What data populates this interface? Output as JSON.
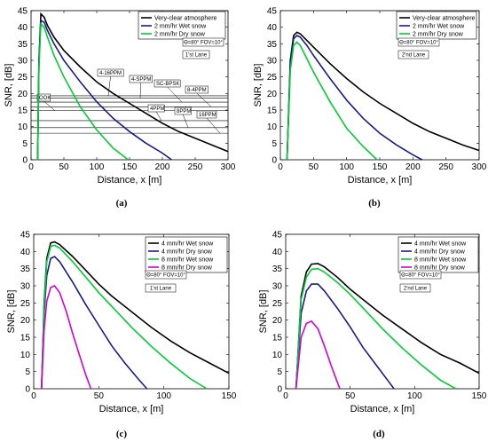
{
  "chart_data": [
    {
      "type": "line",
      "caption": "(a)",
      "xlabel": "Distance, x [m]",
      "ylabel": "SNR, [dB]",
      "xlim": [
        0,
        300
      ],
      "ylim": [
        0,
        45
      ],
      "xticks": [
        0,
        50,
        100,
        150,
        200,
        250,
        300
      ],
      "yticks": [
        0,
        5,
        10,
        15,
        20,
        25,
        30,
        35,
        40,
        45
      ],
      "legend": {
        "placement": "top-right"
      },
      "annotations": [
        "Θ=80° FOV=10°",
        "1'st Lane"
      ],
      "series": [
        {
          "name": "Very-clear atmosphere",
          "color": "#000000",
          "x": [
            10,
            12,
            15,
            20,
            25,
            35,
            50,
            75,
            100,
            125,
            150,
            175,
            200,
            225,
            250,
            275,
            300
          ],
          "y": [
            0,
            30,
            44,
            43,
            40.5,
            37,
            33,
            28,
            23.5,
            20,
            17,
            14,
            11,
            8.5,
            6.5,
            4.5,
            2.5
          ]
        },
        {
          "name": "2 mm/hr Wet snow",
          "color": "#1a1a8c",
          "x": [
            10,
            12,
            15,
            20,
            25,
            35,
            50,
            75,
            100,
            125,
            150,
            175,
            200,
            214
          ],
          "y": [
            0,
            30,
            42,
            41.5,
            39,
            35,
            30,
            23.5,
            17.5,
            12.5,
            8.5,
            5,
            2,
            0
          ]
        },
        {
          "name": "2 mm/hr Dry snow",
          "color": "#00cc33",
          "x": [
            10,
            12,
            15,
            20,
            25,
            35,
            50,
            75,
            100,
            125,
            148
          ],
          "y": [
            0,
            28,
            41,
            40,
            37,
            31.5,
            25,
            16,
            9,
            3.5,
            0
          ]
        }
      ],
      "thresholds": [
        {
          "label": "4-16PPM",
          "y": 19.3
        },
        {
          "label": "4-SPPM",
          "y": 18.6
        },
        {
          "label": "SC-BPSK",
          "y": 17.4
        },
        {
          "label": "8-4PPM",
          "y": 16.0
        },
        {
          "label": "OOK",
          "y": 14.8
        },
        {
          "label": "4PPM",
          "y": 11.8
        },
        {
          "label": "8PPM",
          "y": 9.7
        },
        {
          "label": "16PPM",
          "y": 8.0
        }
      ]
    },
    {
      "type": "line",
      "caption": "(b)",
      "xlabel": "Distance, x [m]",
      "ylabel": "SNR, [dB]",
      "xlim": [
        0,
        300
      ],
      "ylim": [
        0,
        45
      ],
      "xticks": [
        0,
        50,
        100,
        150,
        200,
        250,
        300
      ],
      "yticks": [
        0,
        5,
        10,
        15,
        20,
        25,
        30,
        35,
        40,
        45
      ],
      "legend": {
        "placement": "top-right"
      },
      "annotations": [
        "Θ=80° FOV=10°",
        "2'nd Lane"
      ],
      "series": [
        {
          "name": "Very-clear atmosphere",
          "color": "#000000",
          "x": [
            10,
            15,
            20,
            25,
            30,
            40,
            50,
            75,
            100,
            125,
            150,
            175,
            200,
            225,
            250,
            275,
            300
          ],
          "y": [
            0,
            30,
            37.5,
            38.5,
            38,
            36,
            34,
            29,
            24.5,
            20.5,
            17,
            14,
            11,
            8.5,
            6.5,
            4.5,
            2.8
          ]
        },
        {
          "name": "2 mm/hr Wet snow",
          "color": "#1a1a8c",
          "x": [
            10,
            15,
            20,
            25,
            30,
            40,
            50,
            75,
            100,
            125,
            150,
            175,
            200,
            214
          ],
          "y": [
            0,
            29,
            36.5,
            37.5,
            37,
            34.5,
            31.5,
            24.5,
            18,
            12.5,
            8,
            4.5,
            1.5,
            0
          ]
        },
        {
          "name": "2 mm/hr Dry snow",
          "color": "#00cc33",
          "x": [
            10,
            15,
            20,
            25,
            30,
            40,
            50,
            75,
            100,
            125,
            146
          ],
          "y": [
            0,
            27,
            34.5,
            35.5,
            34.5,
            30.5,
            26.5,
            17.5,
            9.5,
            4,
            0
          ]
        }
      ]
    },
    {
      "type": "line",
      "caption": "(c)",
      "xlabel": "Distance, x [m]",
      "ylabel": "SNR, [dB]",
      "xlim": [
        0,
        150
      ],
      "ylim": [
        0,
        45
      ],
      "xticks": [
        0,
        50,
        100,
        150
      ],
      "yticks": [
        0,
        5,
        10,
        15,
        20,
        25,
        30,
        35,
        40,
        45
      ],
      "legend": {
        "placement": "top-right"
      },
      "annotations": [
        "Θ=80° FOV=10°",
        "1'st Lane"
      ],
      "series": [
        {
          "name": "4 mm/hr Wet snow",
          "color": "#000000",
          "x": [
            6,
            8,
            10,
            13,
            16,
            20,
            30,
            40,
            50,
            60,
            75,
            90,
            105,
            120,
            135,
            150
          ],
          "y": [
            0,
            25,
            38,
            42.5,
            42.8,
            42,
            38.5,
            34.5,
            30.5,
            27,
            22.5,
            18,
            14,
            10.5,
            7.5,
            4.5
          ]
        },
        {
          "name": "4 mm/hr Dry snow",
          "color": "#1a1a8c",
          "x": [
            6,
            8,
            10,
            13,
            16,
            20,
            30,
            40,
            50,
            60,
            70,
            80,
            87
          ],
          "y": [
            0,
            22,
            33,
            38,
            38.5,
            37,
            31,
            24.5,
            18.5,
            12.5,
            7.5,
            3,
            0
          ]
        },
        {
          "name": "8 mm/hr Wet snow",
          "color": "#00cc33",
          "x": [
            6,
            8,
            10,
            13,
            16,
            20,
            30,
            40,
            50,
            60,
            75,
            90,
            105,
            120,
            133
          ],
          "y": [
            0,
            24,
            37,
            41.5,
            41.8,
            41,
            37,
            32.5,
            28,
            24,
            18,
            12.5,
            7.5,
            3,
            0
          ]
        },
        {
          "name": "8 mm/hr Dry snow",
          "color": "#d400d4",
          "x": [
            6,
            8,
            10,
            13,
            16,
            20,
            25,
            30,
            35,
            40,
            44
          ],
          "y": [
            0,
            17,
            25.5,
            29.5,
            30,
            28,
            22.5,
            16,
            10,
            4,
            0
          ]
        }
      ]
    },
    {
      "type": "line",
      "caption": "(d)",
      "xlabel": "Distance, x [m]",
      "ylabel": "SNR, [dB]",
      "xlim": [
        0,
        150
      ],
      "ylim": [
        0,
        45
      ],
      "xticks": [
        0,
        50,
        100,
        150
      ],
      "yticks": [
        0,
        5,
        10,
        15,
        20,
        25,
        30,
        35,
        40,
        45
      ],
      "legend": {
        "placement": "top-right"
      },
      "annotations": [
        "Θ=80° FOV=10°",
        "2'nd Lane"
      ],
      "series": [
        {
          "name": "4 mm/hr Wet snow",
          "color": "#000000",
          "x": [
            8,
            12,
            16,
            20,
            25,
            30,
            40,
            50,
            60,
            75,
            90,
            105,
            120,
            135,
            150
          ],
          "y": [
            0,
            27,
            34,
            36.3,
            36.5,
            35.5,
            32.5,
            29,
            26,
            21.5,
            17.5,
            13.5,
            10,
            7.5,
            4.5
          ]
        },
        {
          "name": "4 mm/hr Dry snow",
          "color": "#1a1a8c",
          "x": [
            8,
            12,
            16,
            20,
            25,
            30,
            40,
            50,
            60,
            70,
            80,
            84
          ],
          "y": [
            0,
            22,
            28.5,
            30.5,
            30.5,
            28.5,
            23.5,
            18,
            12,
            7,
            2,
            0
          ]
        },
        {
          "name": "8 mm/hr Wet snow",
          "color": "#00cc33",
          "x": [
            8,
            12,
            16,
            20,
            25,
            30,
            40,
            50,
            60,
            75,
            90,
            105,
            120,
            132
          ],
          "y": [
            0,
            26,
            32.5,
            34.8,
            35,
            34,
            31,
            27.5,
            23.5,
            17.5,
            12,
            7,
            2.5,
            0
          ]
        },
        {
          "name": "8 mm/hr Dry snow",
          "color": "#d400d4",
          "x": [
            8,
            12,
            16,
            20,
            25,
            30,
            35,
            40,
            42
          ],
          "y": [
            0,
            15,
            19,
            19.7,
            17.5,
            12.5,
            7,
            2,
            0
          ]
        }
      ]
    }
  ]
}
